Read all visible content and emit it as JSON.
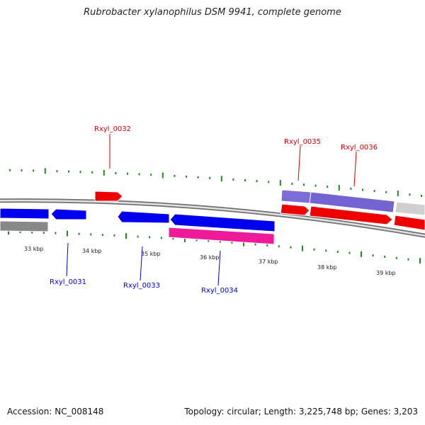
{
  "title": "Rubrobacter xylanophilus DSM 9941, complete genome",
  "footer": {
    "accession": "Accession: NC_008148",
    "summary": "Topology: circular; Length: 3,225,748 bp; Genes: 3,203"
  },
  "colors": {
    "backbone": "#8a8a8a",
    "tick_marks": "#1f8a1f",
    "forward_label": "#cc0000",
    "reverse_label": "#0000cc",
    "forward_gene": "#ee0000",
    "reverse_gene": "#0000ee",
    "purple_gene": "#7a6cd6",
    "pink_gene": "#ee1a99",
    "gray_gene": "#8a8a8a",
    "light_gray_gene": "#c8c8c8"
  },
  "scale_labels": [
    "33 kbp",
    "34 kbp",
    "35 kbp",
    "36 kbp",
    "37 kbp",
    "38 kbp",
    "39 kbp"
  ],
  "gene_labels": {
    "forward": [
      "Rxyl_0032",
      "Rxyl_0035",
      "Rxyl_0036"
    ],
    "reverse": [
      "Rxyl_0031",
      "Rxyl_0033",
      "Rxyl_0034"
    ]
  }
}
